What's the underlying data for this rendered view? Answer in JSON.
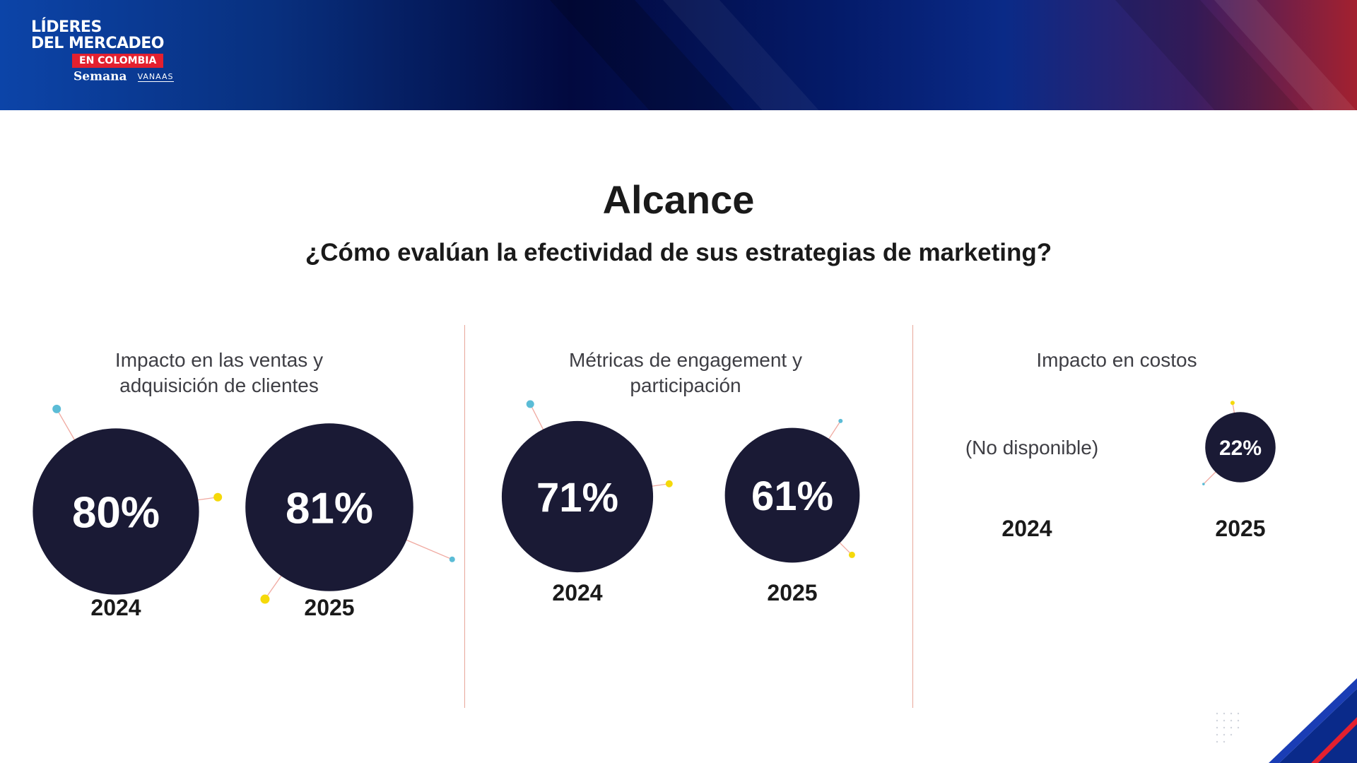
{
  "header": {
    "logo": {
      "line1": "LÍDERES",
      "line2": "DEL MERCADEO",
      "badge": "EN COLOMBIA",
      "partner1": "Semana",
      "partner2": "VANAAS"
    }
  },
  "title": "Alcance",
  "subtitle": "¿Cómo evalúan la efectividad de sus estrategias de marketing?",
  "colors": {
    "bubble": "#1a1a35",
    "accent_blue": "#5bbcd6",
    "accent_yellow": "#f5d90a",
    "connector": "#f0a9a0",
    "divider": "#e8a79a"
  },
  "chart_data": [
    {
      "type": "bubble",
      "title": "Impacto en las ventas y adquisición de clientes",
      "categories": [
        "2024",
        "2025"
      ],
      "values": [
        80,
        81
      ],
      "value_labels": [
        "80%",
        "81%"
      ]
    },
    {
      "type": "bubble",
      "title": "Métricas de engagement y participación",
      "categories": [
        "2024",
        "2025"
      ],
      "values": [
        71,
        61
      ],
      "value_labels": [
        "71%",
        "61%"
      ]
    },
    {
      "type": "bubble",
      "title": "Impacto en costos",
      "categories": [
        "2024",
        "2025"
      ],
      "values": [
        null,
        22
      ],
      "value_labels": [
        "(No disponible)",
        "22%"
      ]
    }
  ]
}
